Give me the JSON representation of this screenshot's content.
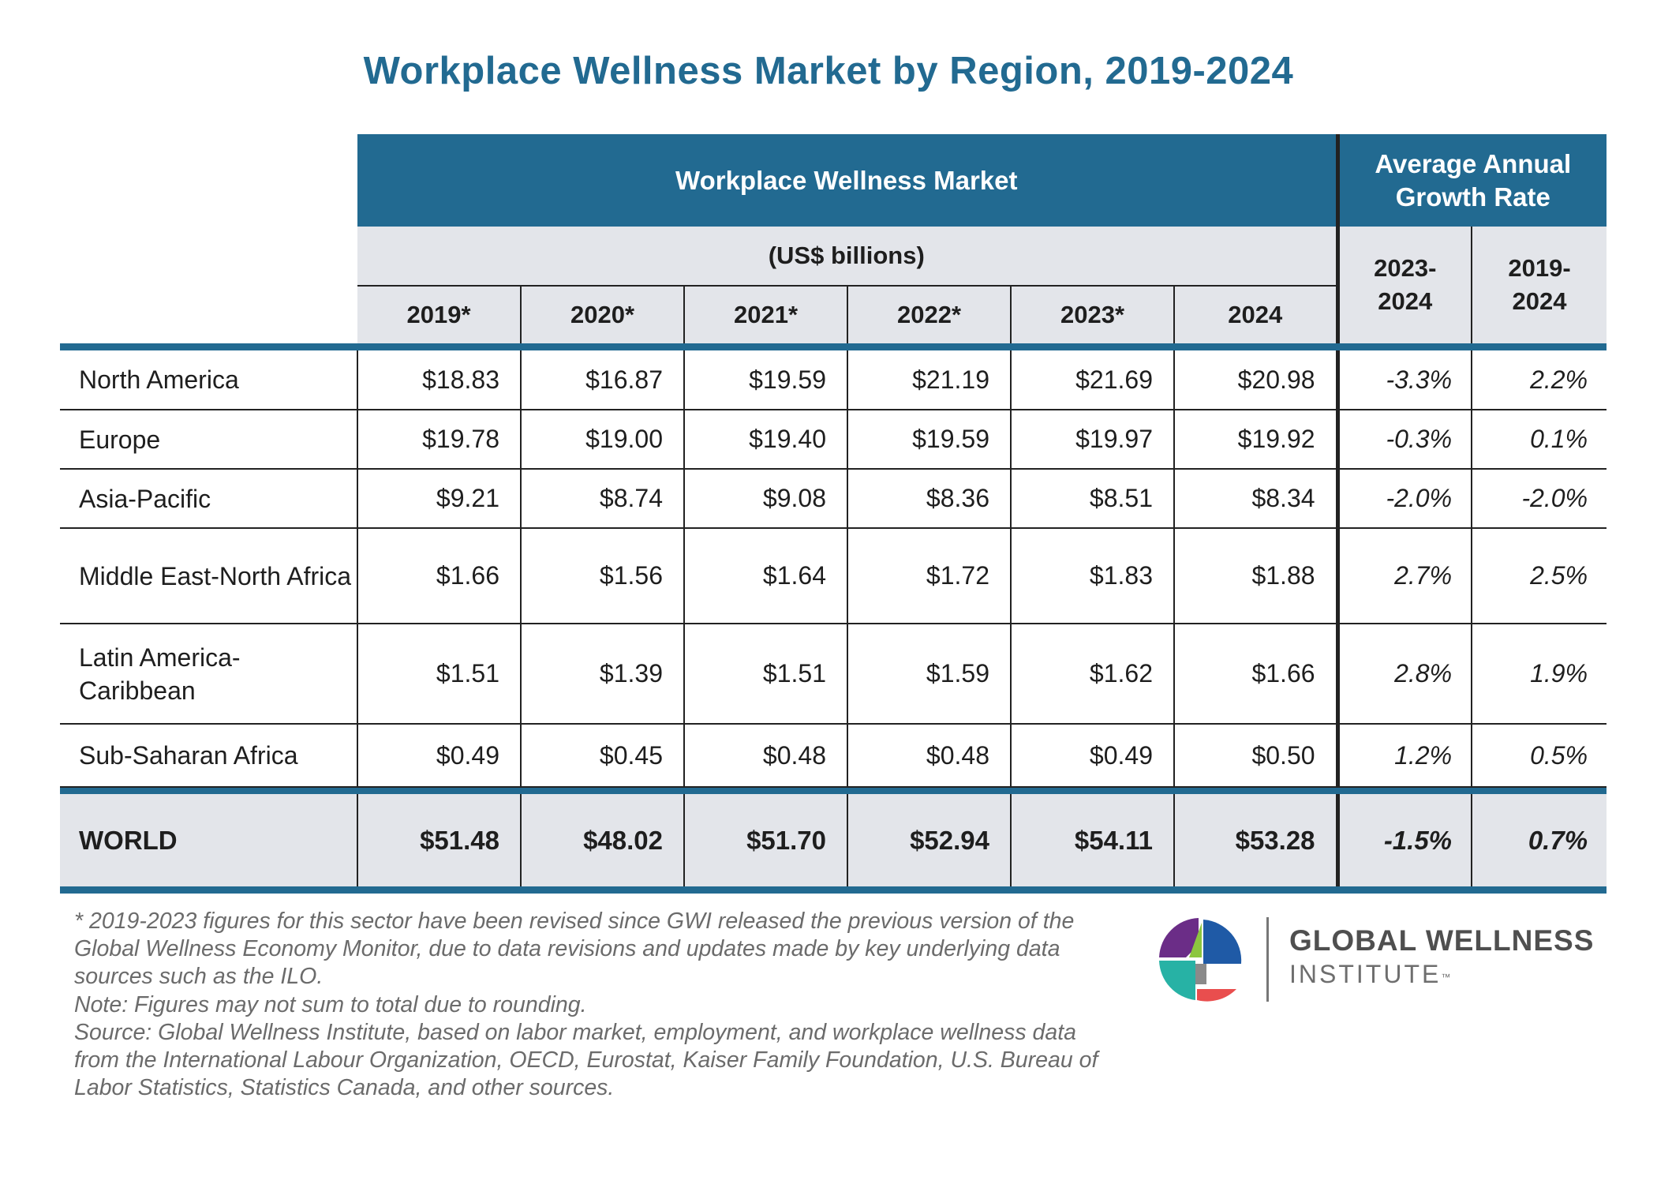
{
  "chart_data": {
    "type": "table",
    "title": "Workplace Wellness Market by Region, 2019-2024",
    "market_header": "Workplace Wellness Market",
    "unit_header": "(US$ billions)",
    "growth_header": "Average Annual Growth Rate",
    "year_columns": [
      "2019*",
      "2020*",
      "2021*",
      "2022*",
      "2023*",
      "2024"
    ],
    "growth_columns": [
      "2023-2024",
      "2019-2024"
    ],
    "rows": [
      {
        "region": "North America",
        "values": [
          "$18.83",
          "$16.87",
          "$19.59",
          "$21.19",
          "$21.69",
          "$20.98"
        ],
        "growth": [
          "-3.3%",
          "2.2%"
        ]
      },
      {
        "region": "Europe",
        "values": [
          "$19.78",
          "$19.00",
          "$19.40",
          "$19.59",
          "$19.97",
          "$19.92"
        ],
        "growth": [
          "-0.3%",
          "0.1%"
        ]
      },
      {
        "region": "Asia-Pacific",
        "values": [
          "$9.21",
          "$8.74",
          "$9.08",
          "$8.36",
          "$8.51",
          "$8.34"
        ],
        "growth": [
          "-2.0%",
          "-2.0%"
        ]
      },
      {
        "region": "Middle East-North Africa",
        "values": [
          "$1.66",
          "$1.56",
          "$1.64",
          "$1.72",
          "$1.83",
          "$1.88"
        ],
        "growth": [
          "2.7%",
          "2.5%"
        ]
      },
      {
        "region": "Latin America-Caribbean",
        "values": [
          "$1.51",
          "$1.39",
          "$1.51",
          "$1.59",
          "$1.62",
          "$1.66"
        ],
        "growth": [
          "2.8%",
          "1.9%"
        ]
      },
      {
        "region": "Sub-Saharan Africa",
        "values": [
          "$0.49",
          "$0.45",
          "$0.48",
          "$0.48",
          "$0.49",
          "$0.50"
        ],
        "growth": [
          "1.2%",
          "0.5%"
        ]
      }
    ],
    "total": {
      "region": "WORLD",
      "values": [
        "$51.48",
        "$48.02",
        "$51.70",
        "$52.94",
        "$54.11",
        "$53.28"
      ],
      "growth": [
        "-1.5%",
        "0.7%"
      ]
    }
  },
  "footnotes": [
    "* 2019-2023 figures for this sector have been revised since GWI released the previous version of the Global Wellness Economy Monitor, due to data revisions and updates made by key underlying data sources such as the ILO.",
    "Note: Figures may not sum to total due to rounding.",
    "Source: Global Wellness Institute, based on labor market, employment, and workplace wellness data from the International Labour Organization, OECD, Eurostat, Kaiser Family Foundation, U.S. Bureau of Labor Statistics, Statistics Canada, and other sources."
  ],
  "logo": {
    "line1": "GLOBAL WELLNESS",
    "line2": "INSTITUTE",
    "trademark": "™",
    "colors": {
      "purple": "#6b2d87",
      "green": "#8cc63f",
      "blue": "#1f5aa6",
      "teal": "#27b2a5",
      "red": "#e94e4e",
      "gray": "#8a8a8a"
    }
  }
}
